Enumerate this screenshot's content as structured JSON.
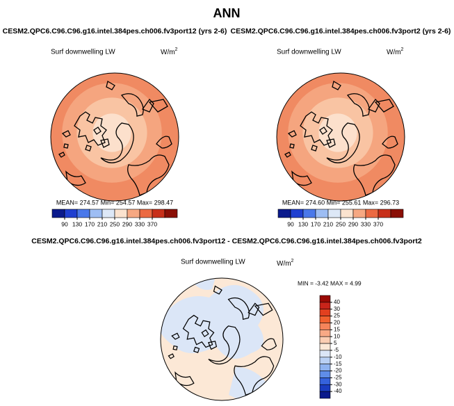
{
  "title": "ANN",
  "panels": [
    {
      "case": "CESM2.QPC6.C96.C96.g16.intel.384pes.ch006.fv3port12 (yrs 2-6)",
      "variable": "Surf downwelling LW",
      "units": {
        "base": "W/m",
        "sup": "2"
      },
      "stats": "MEAN= 274.57  Min= 254.57  Max= 298.47",
      "colorbar": {
        "colors": [
          "#0a1a8c",
          "#1f3fd0",
          "#4a78ea",
          "#9dbdf3",
          "#dde8f7",
          "#fbe3cf",
          "#f6a882",
          "#ec6a42",
          "#c8301a",
          "#8a0f06"
        ],
        "ticks": [
          90,
          130,
          170,
          210,
          250,
          290,
          330,
          370
        ]
      }
    },
    {
      "case": "CESM2.QPC6.C96.C96.g16.intel.384pes.ch006.fv3port2 (yrs 2-6)",
      "variable": "Surf downwelling LW",
      "units": {
        "base": "W/m",
        "sup": "2"
      },
      "stats": "MEAN= 274.60  Min= 255.61  Max= 296.73",
      "colorbar": {
        "colors": [
          "#0a1a8c",
          "#1f3fd0",
          "#4a78ea",
          "#9dbdf3",
          "#dde8f7",
          "#fbe3cf",
          "#f6a882",
          "#ec6a42",
          "#c8301a",
          "#8a0f06"
        ],
        "ticks": [
          90,
          130,
          170,
          210,
          250,
          290,
          330,
          370
        ]
      }
    },
    {
      "case": "CESM2.QPC6.C96.C96.g16.intel.384pes.ch006.fv3port12 - CESM2.QPC6.C96.C96.g16.intel.384pes.ch006.fv3port2",
      "variable": "Surf downwelling LW",
      "units": {
        "base": "W/m",
        "sup": "2"
      },
      "stats": "MIN = -3.42 MAX =  4.99",
      "colorbar": {
        "colors": [
          "#9a0a04",
          "#c8241a",
          "#e2401f",
          "#f0602e",
          "#f5845a",
          "#f8a985",
          "#fbcdb2",
          "#fce8d6",
          "#dbe6f7",
          "#b9d0f4",
          "#8fb3f0",
          "#5f8de8",
          "#3562dc",
          "#1a3cc0",
          "#0a1a8c"
        ],
        "ticks": [
          40,
          30,
          25,
          20,
          15,
          10,
          5,
          -5,
          -10,
          -15,
          -20,
          -25,
          -30,
          -40
        ]
      }
    }
  ]
}
